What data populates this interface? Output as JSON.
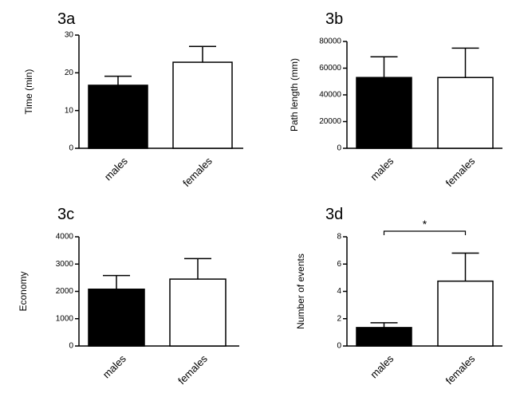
{
  "chart_data": [
    {
      "type": "bar",
      "title": "3a",
      "y_label": "Time (min)",
      "categories": [
        "males",
        "females"
      ],
      "values": [
        16.7,
        22.8
      ],
      "errors": [
        2.4,
        4.2
      ],
      "colors": [
        "#000000",
        "#ffffff"
      ],
      "ylim": [
        0,
        30
      ],
      "yticks": [
        0,
        10,
        20,
        30
      ]
    },
    {
      "type": "bar",
      "title": "3b",
      "y_label": "Path length (mm)",
      "categories": [
        "males",
        "females"
      ],
      "values": [
        53000,
        53000
      ],
      "errors": [
        15500,
        22000
      ],
      "colors": [
        "#000000",
        "#ffffff"
      ],
      "ylim": [
        0,
        80000
      ],
      "yticks": [
        0,
        20000,
        40000,
        60000,
        80000
      ]
    },
    {
      "type": "bar",
      "title": "3c",
      "y_label": "Economy",
      "categories": [
        "males",
        "females"
      ],
      "values": [
        2080,
        2450
      ],
      "errors": [
        500,
        750
      ],
      "colors": [
        "#000000",
        "#ffffff"
      ],
      "ylim": [
        0,
        4000
      ],
      "yticks": [
        0,
        1000,
        2000,
        3000,
        4000
      ]
    },
    {
      "type": "bar",
      "title": "3d",
      "y_label": "Number of events",
      "categories": [
        "males",
        "females"
      ],
      "values": [
        1.35,
        4.75
      ],
      "errors": [
        0.35,
        2.05
      ],
      "colors": [
        "#000000",
        "#ffffff"
      ],
      "ylim": [
        0,
        8
      ],
      "yticks": [
        0,
        2,
        4,
        6,
        8
      ],
      "annotation": "*"
    }
  ]
}
